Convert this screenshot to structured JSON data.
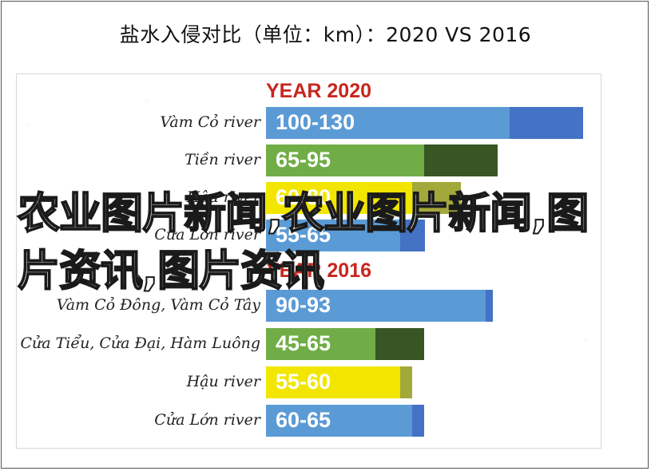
{
  "title": "盐水入侵对比（单位：km）：2020 VS 2016",
  "watermark": "农业图片新闻,农业图片新闻,图片资讯,图片资讯",
  "colors": {
    "blue": "#5b9bd5",
    "blue_dark": "#4472c4",
    "green": "#70ad47",
    "green_dark": "#375623",
    "yellow": "#f2e600",
    "yellow_dark": "#a3a83a",
    "title_red": "#c8261e"
  },
  "chart_data": [
    {
      "type": "bar",
      "title": "YEAR 2020",
      "orientation": "horizontal",
      "series": [
        {
          "name": "",
          "categories": [
            "Vàm Cỏ river",
            "Tiền river",
            "Hậu river",
            "Cửa Lớn river"
          ],
          "ranges": [
            [
              100,
              130
            ],
            [
              65,
              95
            ],
            [
              60,
              80
            ],
            [
              55,
              65
            ]
          ],
          "labels": [
            "100-130",
            "65-95",
            "60-80",
            "55-65"
          ],
          "colors": [
            "blue",
            "green",
            "yellow",
            "blue"
          ]
        }
      ]
    },
    {
      "type": "bar",
      "title": "YEAR 2016",
      "orientation": "horizontal",
      "series": [
        {
          "name": "",
          "categories": [
            "Vàm Cỏ Đông, Vàm Cỏ Tây",
            "Cửa Tiểu, Cửa Đại, Hàm Luông",
            "Hậu river",
            "Cửa Lớn river"
          ],
          "ranges": [
            [
              90,
              93
            ],
            [
              45,
              65
            ],
            [
              55,
              60
            ],
            [
              60,
              65
            ]
          ],
          "labels": [
            "90-93",
            "45-65",
            "55-60",
            "60-65"
          ],
          "colors": [
            "blue",
            "green",
            "yellow",
            "blue"
          ]
        }
      ]
    }
  ]
}
